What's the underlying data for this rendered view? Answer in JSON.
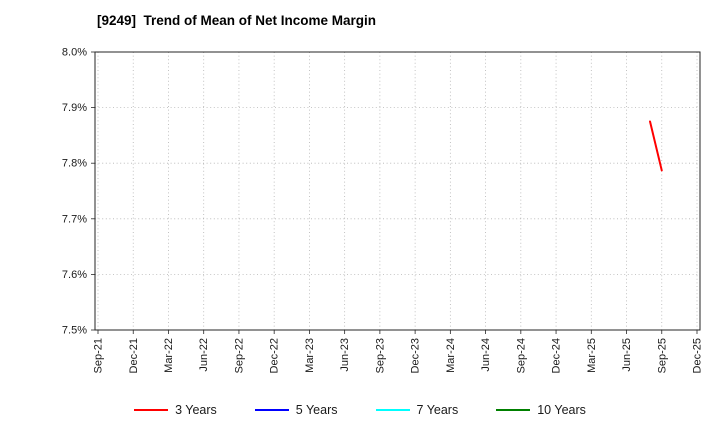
{
  "title": "[9249]  Trend of Mean of Net Income Margin",
  "chart_data": {
    "type": "line",
    "title": "[9249]  Trend of Mean of Net Income Margin",
    "xlabel": "",
    "ylabel": "",
    "ylim": [
      7.5,
      8.0
    ],
    "yticks": [
      7.5,
      7.6,
      7.7,
      7.8,
      7.9,
      8.0
    ],
    "ytick_suffix": "%",
    "grid": "dotted",
    "legend_position": "bottom",
    "categories": [
      "Sep-21",
      "Dec-21",
      "Mar-22",
      "Jun-22",
      "Sep-22",
      "Dec-22",
      "Mar-23",
      "Jun-23",
      "Sep-23",
      "Dec-23",
      "Mar-24",
      "Jun-24",
      "Sep-24",
      "Dec-24",
      "Mar-25",
      "Jun-25",
      "Sep-25",
      "Dec-25"
    ],
    "series": [
      {
        "name": "3 Years",
        "color": "#ff0000",
        "points": [
          {
            "x": "Aug-25",
            "y": 7.875
          },
          {
            "x": "Sep-25",
            "y": 7.787
          }
        ]
      },
      {
        "name": "5 Years",
        "color": "#0000ff",
        "points": []
      },
      {
        "name": "7 Years",
        "color": "#00ffff",
        "points": []
      },
      {
        "name": "10 Years",
        "color": "#008000",
        "points": []
      }
    ]
  }
}
